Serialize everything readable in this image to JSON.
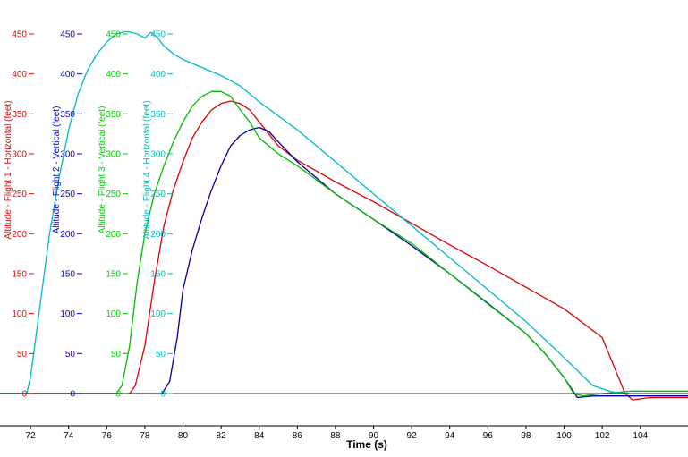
{
  "chart_data": {
    "type": "line",
    "xlabel": "Time (s)",
    "xlim": [
      70.4,
      106.5
    ],
    "x_ticks": [
      72,
      74,
      76,
      78,
      80,
      82,
      84,
      86,
      88,
      90,
      92,
      94,
      96,
      98,
      100,
      102,
      104
    ],
    "x_tick_labels": [
      "72",
      "74",
      "76",
      "78",
      "80",
      "82",
      "84",
      "86",
      "88",
      "90",
      "92",
      "94",
      "96",
      "98",
      "100",
      "102",
      "104"
    ],
    "ylim": [
      -20,
      465
    ],
    "y_ticks": [
      0,
      50,
      100,
      150,
      200,
      250,
      300,
      350,
      400,
      450
    ],
    "y_tick_labels": [
      "0",
      "50",
      "100",
      "150",
      "200",
      "250",
      "300",
      "350",
      "400",
      "450"
    ],
    "grid": false,
    "y_axes": [
      {
        "label": "Altitude - Flight 1 - Horizontal (feet)",
        "color": "#ee0000"
      },
      {
        "label": "Altitude - Flight 2 - Vertical (feet)",
        "color": "#0000cc"
      },
      {
        "label": "Altitude - Flight 3 - Vertical (feet)",
        "color": "#00cc00"
      },
      {
        "label": "Altitude - Flight 4 - Horizontal (feet)",
        "color": "#00bbbb"
      }
    ],
    "series": [
      {
        "color": "#dd0000",
        "x": [
          70.4,
          77.2,
          77.5,
          78.0,
          78.5,
          79.0,
          79.5,
          80.0,
          80.5,
          81.0,
          81.5,
          82.0,
          82.5,
          83.0,
          83.5,
          84.0,
          85.0,
          86.0,
          88.0,
          90.0,
          92.0,
          94.0,
          96.0,
          98.0,
          100.0,
          102.0,
          103.2,
          103.6,
          104.5,
          106.5
        ],
        "y": [
          0,
          0,
          10,
          60,
          140,
          210,
          255,
          290,
          320,
          340,
          355,
          363,
          366,
          363,
          355,
          340,
          310,
          292,
          265,
          240,
          213,
          186,
          160,
          133,
          106,
          70,
          0,
          -8,
          -5,
          -5
        ]
      },
      {
        "color": "#000099",
        "x": [
          70.4,
          78.9,
          79.3,
          79.7,
          80.0,
          80.5,
          81.0,
          81.5,
          82.0,
          82.5,
          83.0,
          83.5,
          84.0,
          84.5,
          85.0,
          86.0,
          88.0,
          90.0,
          92.0,
          94.0,
          96.0,
          98.0,
          99.0,
          100.0,
          100.7,
          101.5,
          102.5,
          106.5
        ],
        "y": [
          0,
          0,
          15,
          70,
          130,
          180,
          220,
          255,
          285,
          310,
          323,
          330,
          333,
          328,
          315,
          290,
          250,
          218,
          185,
          150,
          113,
          75,
          50,
          20,
          -5,
          -3,
          -3,
          -3
        ]
      },
      {
        "color": "#00bb00",
        "x": [
          70.4,
          76.5,
          76.8,
          77.2,
          77.6,
          78.0,
          78.5,
          79.0,
          79.5,
          80.0,
          80.5,
          81.0,
          81.5,
          82.0,
          82.5,
          83.0,
          83.5,
          84.0,
          85.0,
          86.0,
          88.0,
          90.0,
          92.0,
          94.0,
          96.0,
          98.0,
          99.0,
          100.0,
          100.5,
          101.0,
          102.0,
          103.5,
          106.5
        ],
        "y": [
          0,
          0,
          10,
          60,
          140,
          200,
          250,
          285,
          315,
          340,
          360,
          372,
          378,
          378,
          372,
          355,
          340,
          320,
          300,
          285,
          250,
          218,
          188,
          150,
          112,
          75,
          50,
          20,
          0,
          -3,
          0,
          3,
          3
        ]
      },
      {
        "color": "#00b8c8",
        "x": [
          70.4,
          71.8,
          72.0,
          72.5,
          73.0,
          73.5,
          74.0,
          74.5,
          75.0,
          75.5,
          76.0,
          76.5,
          77.0,
          77.3,
          77.6,
          78.0,
          78.3,
          78.6,
          79.0,
          79.5,
          80.0,
          81.0,
          82.0,
          83.0,
          84.0,
          86.0,
          88.0,
          90.0,
          92.0,
          94.0,
          96.0,
          98.0,
          100.0,
          101.5,
          102.5,
          103.5,
          104.5,
          106.5
        ],
        "y": [
          0,
          0,
          20,
          110,
          200,
          270,
          330,
          375,
          405,
          425,
          440,
          450,
          453,
          452,
          450,
          445,
          452,
          447,
          435,
          425,
          418,
          408,
          398,
          385,
          365,
          330,
          290,
          250,
          210,
          170,
          130,
          90,
          45,
          10,
          2,
          0,
          0,
          0
        ]
      }
    ]
  }
}
